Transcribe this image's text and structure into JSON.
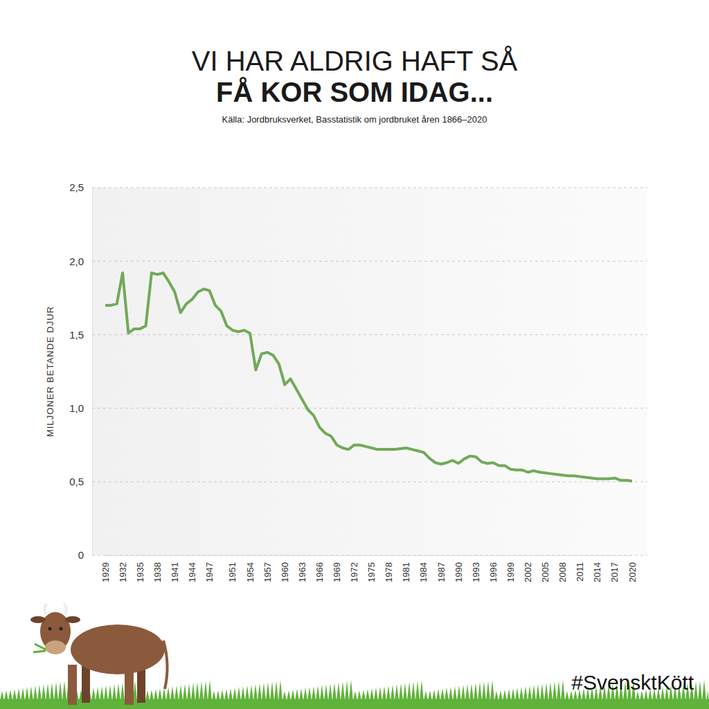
{
  "chart_data": {
    "type": "line",
    "title": [
      "VI HAR ALDRIG HAFT SÅ",
      "FÅ KOR SOM IDAG..."
    ],
    "subtitle": "Källa: Jordbruksverket, Basstatistik om jordbruket åren 1866–2020",
    "y_label": "MILJONER BETANDE DJUR",
    "annotations": [
      "#SvensktKött"
    ],
    "x": [
      1929,
      1930,
      1931,
      1932,
      1933,
      1934,
      1935,
      1936,
      1937,
      1938,
      1939,
      1940,
      1941,
      1942,
      1943,
      1944,
      1945,
      1946,
      1947,
      1948,
      1949,
      1950,
      1951,
      1952,
      1953,
      1954,
      1955,
      1956,
      1957,
      1958,
      1959,
      1960,
      1961,
      1962,
      1963,
      1964,
      1965,
      1966,
      1967,
      1968,
      1969,
      1970,
      1971,
      1972,
      1973,
      1974,
      1975,
      1976,
      1977,
      1978,
      1979,
      1980,
      1981,
      1982,
      1983,
      1984,
      1985,
      1986,
      1987,
      1988,
      1989,
      1990,
      1991,
      1992,
      1993,
      1994,
      1995,
      1996,
      1997,
      1998,
      1999,
      2000,
      2001,
      2002,
      2003,
      2004,
      2005,
      2006,
      2007,
      2008,
      2009,
      2010,
      2011,
      2012,
      2013,
      2014,
      2015,
      2016,
      2017,
      2018,
      2019,
      2020
    ],
    "values": [
      1.7,
      1.7,
      1.71,
      1.92,
      1.51,
      1.54,
      1.54,
      1.56,
      1.92,
      1.91,
      1.92,
      1.86,
      1.79,
      1.65,
      1.71,
      1.74,
      1.79,
      1.81,
      1.8,
      1.7,
      1.66,
      1.56,
      1.53,
      1.52,
      1.53,
      1.51,
      1.26,
      1.37,
      1.38,
      1.36,
      1.3,
      1.16,
      1.2,
      1.13,
      1.06,
      0.99,
      0.95,
      0.87,
      0.83,
      0.81,
      0.75,
      0.73,
      0.72,
      0.75,
      0.75,
      0.74,
      0.73,
      0.72,
      0.72,
      0.72,
      0.72,
      0.725,
      0.73,
      0.72,
      0.71,
      0.7,
      0.66,
      0.63,
      0.62,
      0.63,
      0.645,
      0.625,
      0.655,
      0.675,
      0.67,
      0.635,
      0.625,
      0.63,
      0.61,
      0.61,
      0.585,
      0.58,
      0.58,
      0.565,
      0.575,
      0.565,
      0.56,
      0.555,
      0.55,
      0.545,
      0.54,
      0.54,
      0.535,
      0.53,
      0.525,
      0.52,
      0.52,
      0.52,
      0.525,
      0.51,
      0.51,
      0.505
    ],
    "color": "#72a95a",
    "marker": "none",
    "line_style": "solid",
    "grid": true,
    "xlim": [
      1929,
      2020
    ],
    "xticks": [
      1929,
      1932,
      1935,
      1938,
      1941,
      1944,
      1947,
      1951,
      1954,
      1957,
      1960,
      1963,
      1966,
      1969,
      1972,
      1975,
      1978,
      1981,
      1984,
      1987,
      1990,
      1993,
      1996,
      1999,
      2002,
      2005,
      2008,
      2011,
      2014,
      2017,
      2020
    ],
    "ylim": [
      0,
      2.5
    ],
    "yticks": [
      0,
      {
        "value": 0.5,
        "label": "0,5"
      },
      {
        "value": 1,
        "label": "1,0"
      },
      {
        "value": 1.5,
        "label": "1,5"
      },
      {
        "value": 2,
        "label": "2,0"
      },
      {
        "value": 2.5,
        "label": "2,5"
      }
    ]
  }
}
